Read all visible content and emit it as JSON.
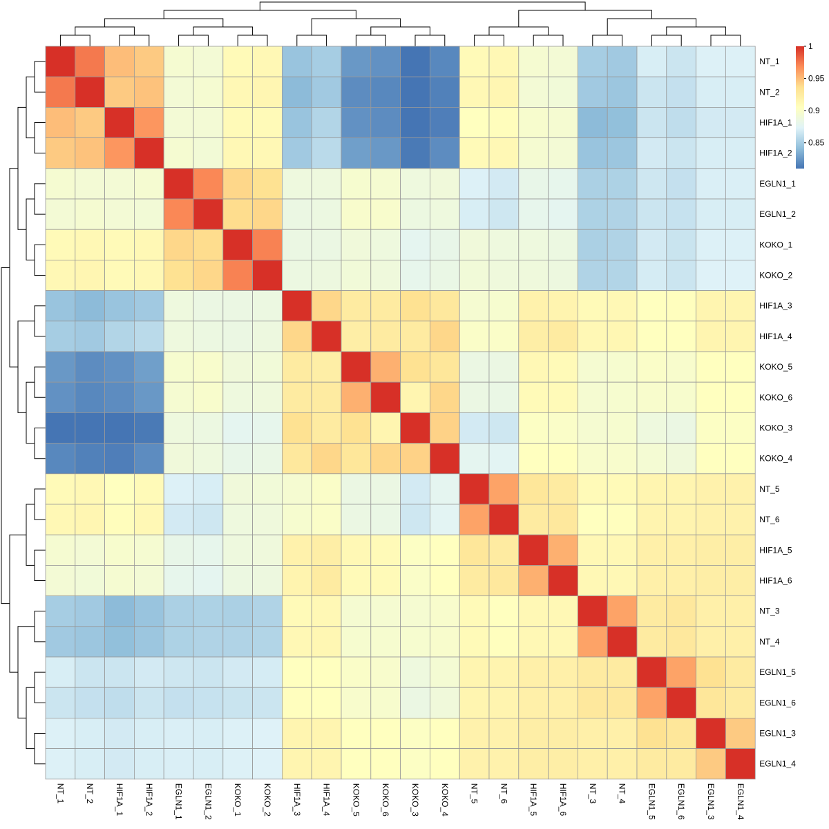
{
  "chart_data": {
    "type": "heatmap",
    "title": "",
    "rows": [
      "NT_1",
      "NT_2",
      "HIF1A_1",
      "HIF1A_2",
      "EGLN1_1",
      "EGLN1_2",
      "KOKO_1",
      "KOKO_2",
      "HIF1A_3",
      "HIF1A_4",
      "KOKO_5",
      "KOKO_6",
      "KOKO_3",
      "KOKO_4",
      "NT_5",
      "NT_6",
      "HIF1A_5",
      "HIF1A_6",
      "NT_3",
      "NT_4",
      "EGLN1_5",
      "EGLN1_6",
      "EGLN1_3",
      "EGLN1_4"
    ],
    "columns": [
      "NT_1",
      "NT_2",
      "HIF1A_1",
      "HIF1A_2",
      "EGLN1_1",
      "EGLN1_2",
      "KOKO_1",
      "KOKO_2",
      "HIF1A_3",
      "HIF1A_4",
      "KOKO_5",
      "KOKO_6",
      "KOKO_3",
      "KOKO_4",
      "NT_5",
      "NT_6",
      "HIF1A_5",
      "HIF1A_6",
      "NT_3",
      "NT_4",
      "EGLN1_5",
      "EGLN1_6",
      "EGLN1_3",
      "EGLN1_4"
    ],
    "values": [
      [
        1.0,
        0.975,
        0.95,
        0.945,
        0.895,
        0.893,
        0.91,
        0.912,
        0.845,
        0.85,
        0.825,
        0.822,
        0.81,
        0.818,
        0.91,
        0.912,
        0.895,
        0.893,
        0.85,
        0.848,
        0.87,
        0.865,
        0.872,
        0.872
      ],
      [
        0.975,
        1.0,
        0.945,
        0.948,
        0.893,
        0.895,
        0.912,
        0.914,
        0.84,
        0.848,
        0.82,
        0.818,
        0.805,
        0.815,
        0.912,
        0.914,
        0.893,
        0.891,
        0.848,
        0.846,
        0.865,
        0.862,
        0.87,
        0.87
      ],
      [
        0.95,
        0.945,
        1.0,
        0.965,
        0.893,
        0.893,
        0.91,
        0.91,
        0.845,
        0.855,
        0.822,
        0.82,
        0.806,
        0.814,
        0.905,
        0.907,
        0.897,
        0.895,
        0.84,
        0.842,
        0.865,
        0.86,
        0.868,
        0.868
      ],
      [
        0.945,
        0.948,
        0.965,
        1.0,
        0.895,
        0.892,
        0.912,
        0.912,
        0.848,
        0.858,
        0.828,
        0.825,
        0.812,
        0.82,
        0.91,
        0.912,
        0.895,
        0.893,
        0.845,
        0.846,
        0.868,
        0.865,
        0.87,
        0.87
      ],
      [
        0.895,
        0.893,
        0.893,
        0.895,
        1.0,
        0.97,
        0.94,
        0.935,
        0.888,
        0.888,
        0.896,
        0.895,
        0.888,
        0.89,
        0.872,
        0.868,
        0.882,
        0.88,
        0.852,
        0.853,
        0.866,
        0.862,
        0.871,
        0.871
      ],
      [
        0.893,
        0.895,
        0.893,
        0.892,
        0.97,
        1.0,
        0.938,
        0.94,
        0.885,
        0.886,
        0.898,
        0.898,
        0.886,
        0.888,
        0.87,
        0.866,
        0.88,
        0.878,
        0.853,
        0.854,
        0.865,
        0.863,
        0.87,
        0.87
      ],
      [
        0.91,
        0.912,
        0.91,
        0.912,
        0.94,
        0.938,
        1.0,
        0.972,
        0.885,
        0.885,
        0.89,
        0.888,
        0.878,
        0.882,
        0.89,
        0.888,
        0.888,
        0.886,
        0.852,
        0.854,
        0.868,
        0.864,
        0.872,
        0.872
      ],
      [
        0.912,
        0.914,
        0.91,
        0.912,
        0.935,
        0.94,
        0.972,
        1.0,
        0.886,
        0.887,
        0.891,
        0.889,
        0.88,
        0.884,
        0.891,
        0.889,
        0.889,
        0.887,
        0.854,
        0.855,
        0.869,
        0.865,
        0.873,
        0.873
      ],
      [
        0.845,
        0.84,
        0.845,
        0.848,
        0.888,
        0.885,
        0.885,
        0.886,
        1.0,
        0.94,
        0.925,
        0.925,
        0.935,
        0.928,
        0.895,
        0.896,
        0.918,
        0.916,
        0.91,
        0.912,
        0.905,
        0.906,
        0.915,
        0.915
      ],
      [
        0.85,
        0.848,
        0.855,
        0.858,
        0.888,
        0.886,
        0.885,
        0.887,
        0.94,
        1.0,
        0.922,
        0.925,
        0.925,
        0.94,
        0.9,
        0.9,
        0.922,
        0.925,
        0.912,
        0.913,
        0.905,
        0.905,
        0.915,
        0.915
      ],
      [
        0.825,
        0.82,
        0.822,
        0.828,
        0.896,
        0.898,
        0.89,
        0.891,
        0.925,
        0.922,
        1.0,
        0.955,
        0.935,
        0.93,
        0.885,
        0.885,
        0.912,
        0.91,
        0.895,
        0.896,
        0.9,
        0.898,
        0.905,
        0.905
      ],
      [
        0.822,
        0.818,
        0.82,
        0.825,
        0.895,
        0.898,
        0.888,
        0.889,
        0.925,
        0.925,
        0.955,
        1.0,
        0.915,
        0.94,
        0.885,
        0.884,
        0.91,
        0.91,
        0.895,
        0.896,
        0.898,
        0.897,
        0.905,
        0.905
      ],
      [
        0.81,
        0.805,
        0.806,
        0.812,
        0.888,
        0.886,
        0.878,
        0.88,
        0.935,
        0.925,
        0.935,
        0.915,
        1.0,
        0.942,
        0.868,
        0.866,
        0.902,
        0.9,
        0.895,
        0.896,
        0.888,
        0.885,
        0.902,
        0.902
      ],
      [
        0.818,
        0.815,
        0.814,
        0.82,
        0.89,
        0.888,
        0.882,
        0.884,
        0.928,
        0.94,
        0.93,
        0.94,
        0.942,
        1.0,
        0.878,
        0.876,
        0.905,
        0.905,
        0.898,
        0.898,
        0.894,
        0.89,
        0.905,
        0.905
      ],
      [
        0.91,
        0.912,
        0.905,
        0.91,
        0.872,
        0.87,
        0.89,
        0.891,
        0.895,
        0.9,
        0.885,
        0.885,
        0.868,
        0.878,
        1.0,
        0.96,
        0.93,
        0.925,
        0.91,
        0.91,
        0.915,
        0.915,
        0.918,
        0.918
      ],
      [
        0.912,
        0.914,
        0.907,
        0.912,
        0.868,
        0.866,
        0.888,
        0.889,
        0.896,
        0.9,
        0.885,
        0.884,
        0.866,
        0.876,
        0.96,
        1.0,
        0.925,
        0.928,
        0.905,
        0.906,
        0.916,
        0.916,
        0.918,
        0.918
      ],
      [
        0.895,
        0.893,
        0.897,
        0.895,
        0.882,
        0.88,
        0.888,
        0.889,
        0.918,
        0.922,
        0.912,
        0.91,
        0.902,
        0.905,
        0.93,
        0.925,
        1.0,
        0.955,
        0.912,
        0.912,
        0.92,
        0.92,
        0.922,
        0.922
      ],
      [
        0.893,
        0.891,
        0.895,
        0.893,
        0.88,
        0.878,
        0.886,
        0.887,
        0.916,
        0.925,
        0.91,
        0.91,
        0.9,
        0.905,
        0.925,
        0.928,
        0.955,
        1.0,
        0.912,
        0.912,
        0.92,
        0.92,
        0.922,
        0.922
      ],
      [
        0.85,
        0.848,
        0.84,
        0.845,
        0.852,
        0.853,
        0.852,
        0.854,
        0.91,
        0.912,
        0.895,
        0.895,
        0.895,
        0.898,
        0.91,
        0.905,
        0.912,
        0.912,
        1.0,
        0.96,
        0.925,
        0.928,
        0.92,
        0.92
      ],
      [
        0.848,
        0.846,
        0.842,
        0.846,
        0.853,
        0.854,
        0.854,
        0.855,
        0.912,
        0.913,
        0.896,
        0.896,
        0.896,
        0.898,
        0.91,
        0.906,
        0.912,
        0.912,
        0.96,
        1.0,
        0.925,
        0.928,
        0.92,
        0.92
      ],
      [
        0.87,
        0.865,
        0.865,
        0.868,
        0.866,
        0.865,
        0.868,
        0.869,
        0.905,
        0.905,
        0.9,
        0.898,
        0.888,
        0.894,
        0.915,
        0.916,
        0.92,
        0.92,
        0.925,
        0.925,
        1.0,
        0.96,
        0.935,
        0.925
      ],
      [
        0.865,
        0.862,
        0.86,
        0.865,
        0.862,
        0.863,
        0.864,
        0.865,
        0.906,
        0.905,
        0.898,
        0.897,
        0.885,
        0.89,
        0.915,
        0.916,
        0.92,
        0.92,
        0.928,
        0.928,
        0.96,
        1.0,
        0.93,
        0.925
      ],
      [
        0.872,
        0.87,
        0.868,
        0.87,
        0.871,
        0.87,
        0.872,
        0.873,
        0.915,
        0.915,
        0.905,
        0.905,
        0.902,
        0.905,
        0.918,
        0.918,
        0.922,
        0.922,
        0.92,
        0.92,
        0.935,
        0.93,
        1.0,
        0.945
      ],
      [
        0.872,
        0.87,
        0.868,
        0.87,
        0.871,
        0.87,
        0.872,
        0.873,
        0.915,
        0.915,
        0.905,
        0.905,
        0.902,
        0.905,
        0.918,
        0.918,
        0.922,
        0.922,
        0.92,
        0.92,
        0.925,
        0.925,
        0.945,
        1.0
      ]
    ],
    "color_scale": {
      "min": 0.81,
      "max": 1.0,
      "colors": [
        "#4575b4",
        "#91bfdb",
        "#e0f3f8",
        "#ffffbf",
        "#fee090",
        "#fc8d59",
        "#d73027"
      ],
      "legend_ticks": [
        "1",
        "0.95",
        "0.9",
        "0.85"
      ],
      "legend_tick_values": [
        1.0,
        0.95,
        0.9,
        0.85
      ]
    },
    "cell_border": "#999999",
    "dendrograms": [
      "top",
      "left"
    ]
  }
}
